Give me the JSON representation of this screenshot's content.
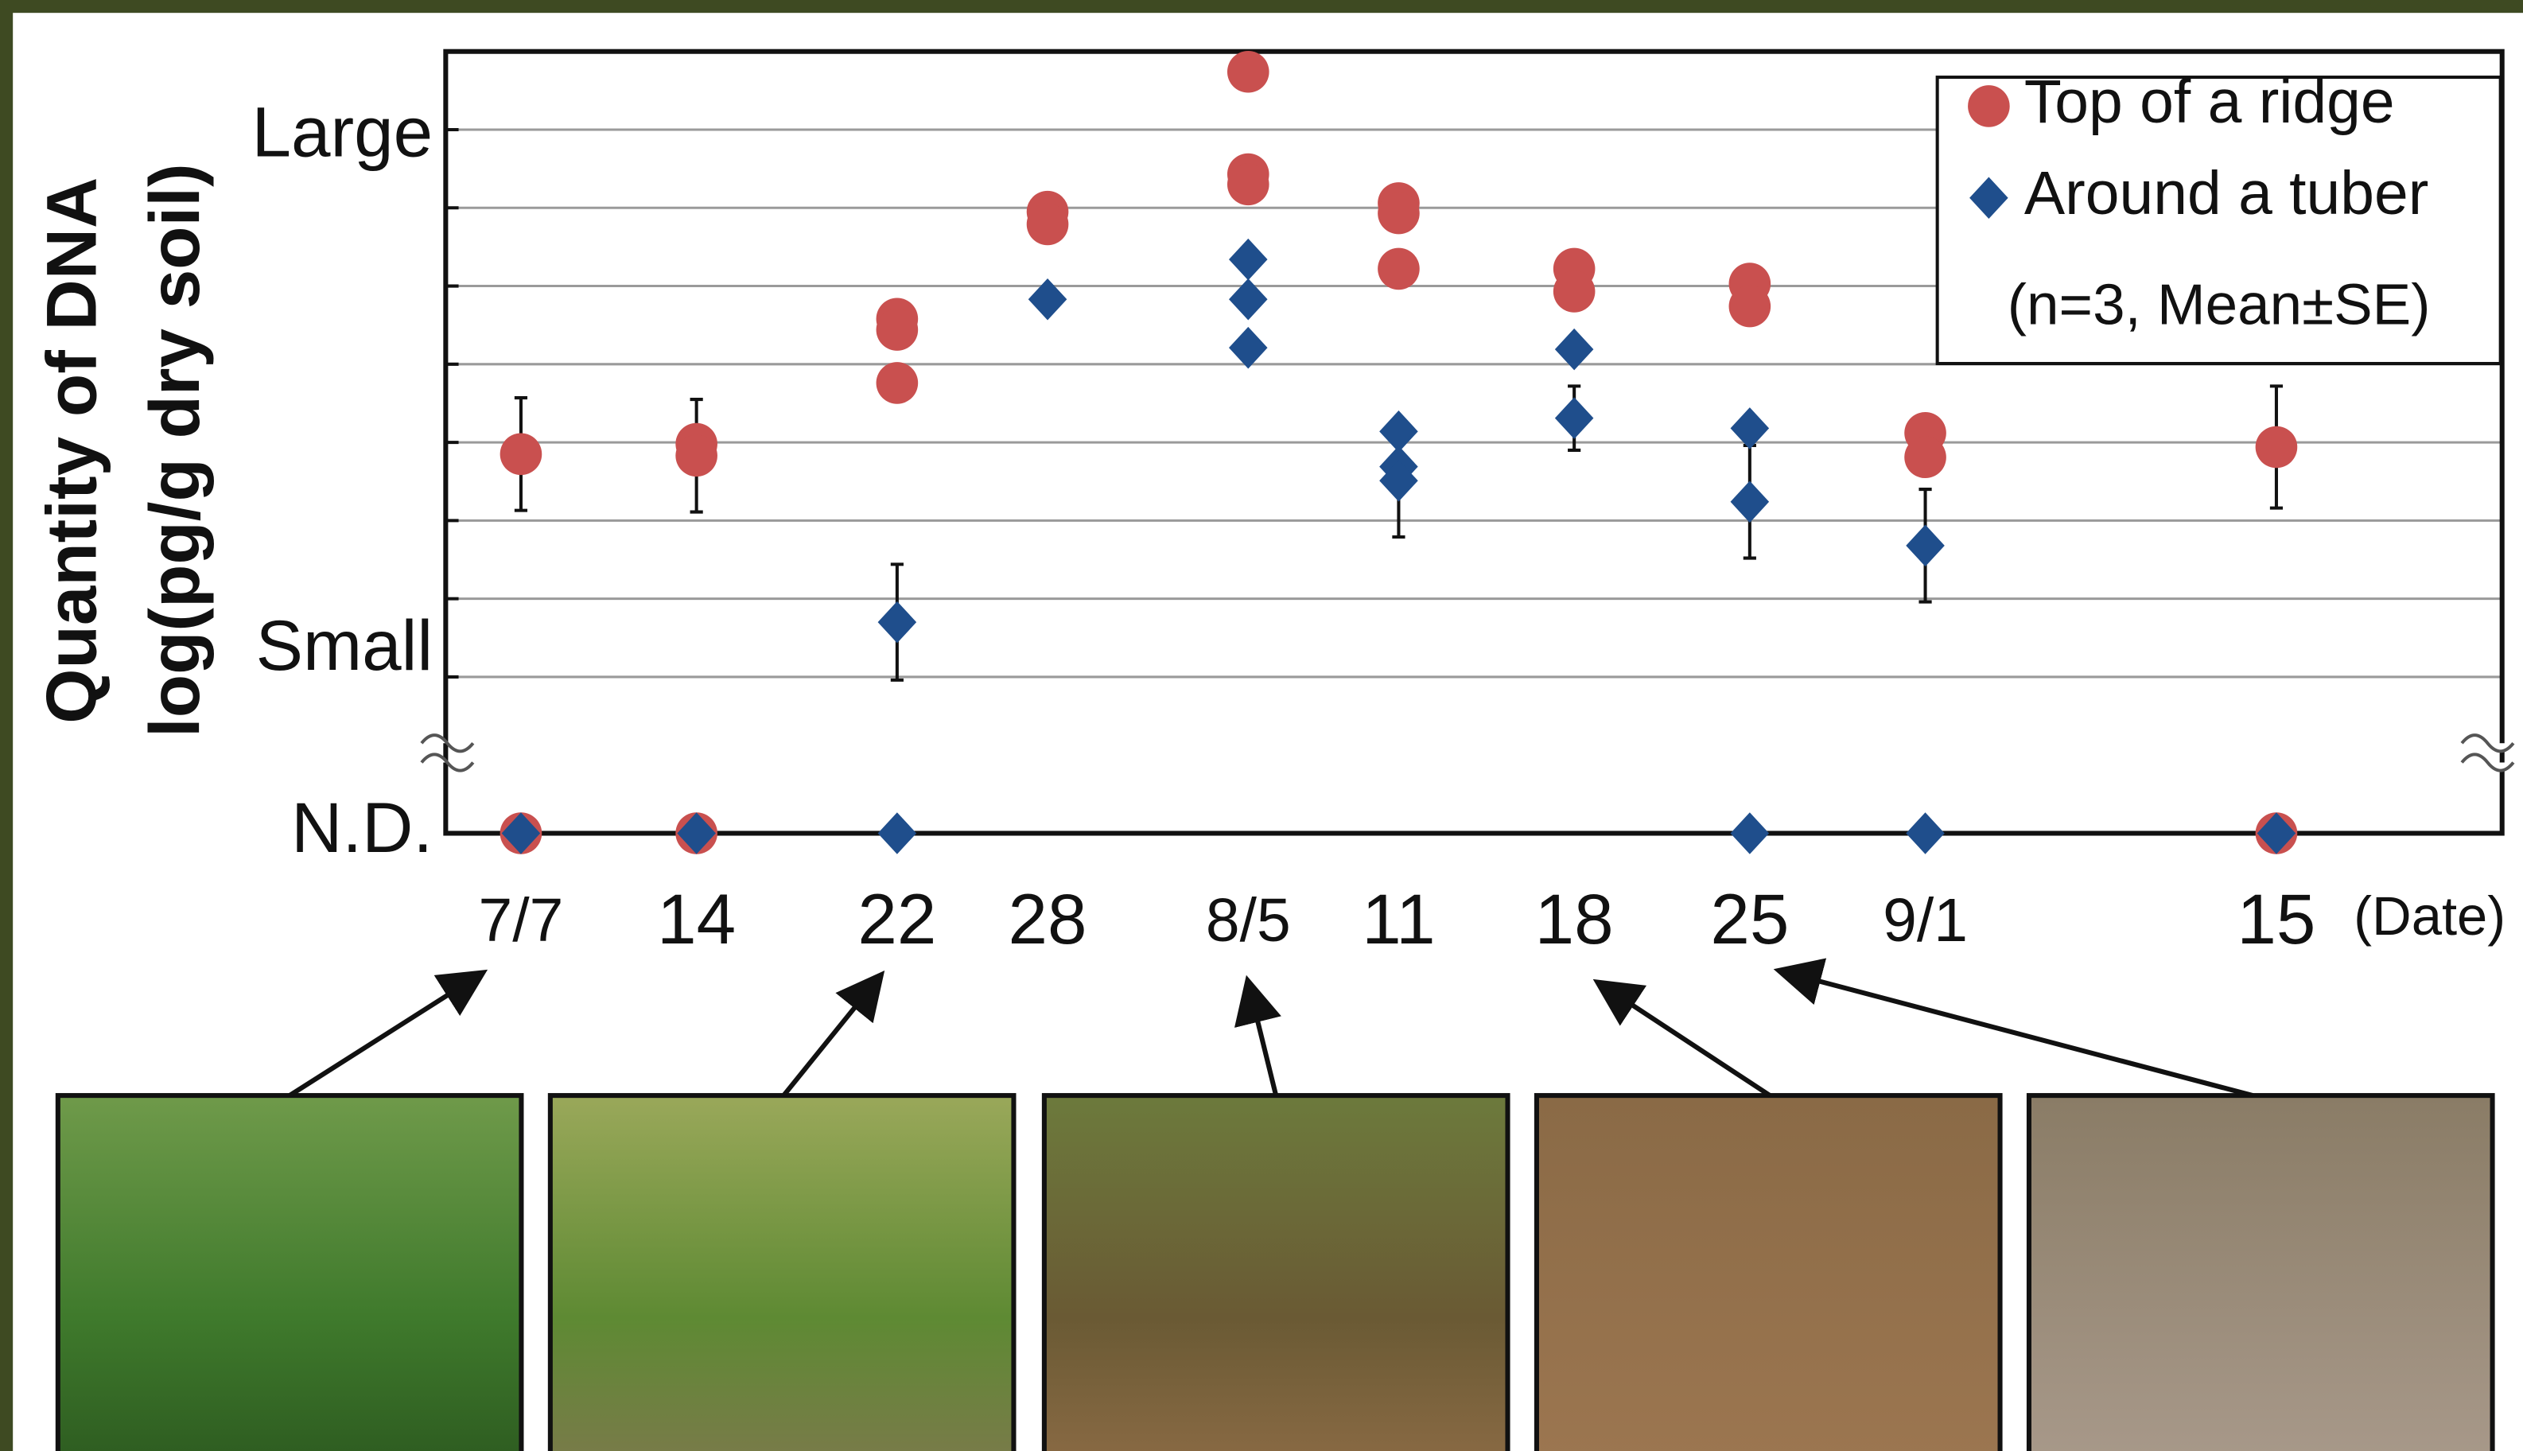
{
  "chart_data": {
    "type": "scatter",
    "y_label": [
      "Quantity of DNA",
      "log(pg/g dry soil)"
    ],
    "x_label": "(Date)",
    "note": "(n=3, Mean±SE)",
    "legend": "top-right",
    "xlim": [
      "7/4",
      "9/24"
    ],
    "xticks": [
      {
        "value": "7/7",
        "label": "7/7"
      },
      {
        "value": "7/14",
        "label": "14"
      },
      {
        "value": "7/22",
        "label": "22"
      },
      {
        "value": "7/28",
        "label": "28"
      },
      {
        "value": "8/5",
        "label": "8/5"
      },
      {
        "value": "8/11",
        "label": "11"
      },
      {
        "value": "8/18",
        "label": "18"
      },
      {
        "value": "8/25",
        "label": "25"
      },
      {
        "value": "9/1",
        "label": "9/1"
      },
      {
        "value": "9/15",
        "label": "15"
      }
    ],
    "ylim": [
      -1,
      9
    ],
    "yticks": [
      {
        "value": 7.9,
        "label": "Large"
      },
      {
        "value": 1.33,
        "label": "Small"
      },
      {
        "value": -1,
        "label": "N.D."
      }
    ],
    "ygrid": [
      1,
      2,
      3,
      4,
      5,
      6,
      7,
      8
    ],
    "grid": true,
    "series": [
      {
        "name": "Top of a ridge",
        "color": "#c9504f",
        "marker": "circle",
        "x": [
          "7/7",
          "7/7",
          "7/14",
          "7/14",
          "7/14",
          "7/22",
          "7/22",
          "7/22",
          "7/28",
          "7/28",
          "8/5",
          "8/5",
          "8/5",
          "8/11",
          "8/11",
          "8/11",
          "8/18",
          "8/18",
          "8/25",
          "8/25",
          "9/1",
          "9/1",
          "9/15",
          "9/15"
        ],
        "values": [
          3.85,
          -1,
          3.98,
          3.83,
          -1,
          5.58,
          5.44,
          4.76,
          6.95,
          6.79,
          8.74,
          7.43,
          7.3,
          7.06,
          6.93,
          6.22,
          6.22,
          5.93,
          6.03,
          5.74,
          4.12,
          3.81,
          3.94,
          -1
        ],
        "errors": [
          0.72,
          null,
          null,
          0.72,
          null,
          null,
          null,
          null,
          null,
          null,
          null,
          null,
          null,
          null,
          null,
          null,
          null,
          null,
          null,
          null,
          null,
          null,
          0.78,
          null
        ]
      },
      {
        "name": "Around a tuber",
        "color": "#1f4e8c",
        "marker": "diamond",
        "x": [
          "7/7",
          "7/14",
          "7/22",
          "7/22",
          "7/28",
          "8/5",
          "8/5",
          "8/5",
          "8/11",
          "8/11",
          "8/11",
          "8/18",
          "8/18",
          "8/25",
          "8/25",
          "8/25",
          "9/1",
          "9/1",
          "9/15"
        ],
        "values": [
          -1,
          -1,
          1.7,
          -1,
          5.83,
          6.34,
          5.83,
          5.21,
          4.14,
          3.69,
          3.51,
          5.19,
          4.31,
          4.18,
          3.24,
          -1,
          2.68,
          -1,
          -1
        ],
        "errors": [
          null,
          null,
          0.74,
          null,
          null,
          null,
          null,
          null,
          null,
          null,
          0.72,
          null,
          0.41,
          null,
          0.72,
          null,
          0.72,
          null,
          null
        ]
      }
    ]
  }
}
